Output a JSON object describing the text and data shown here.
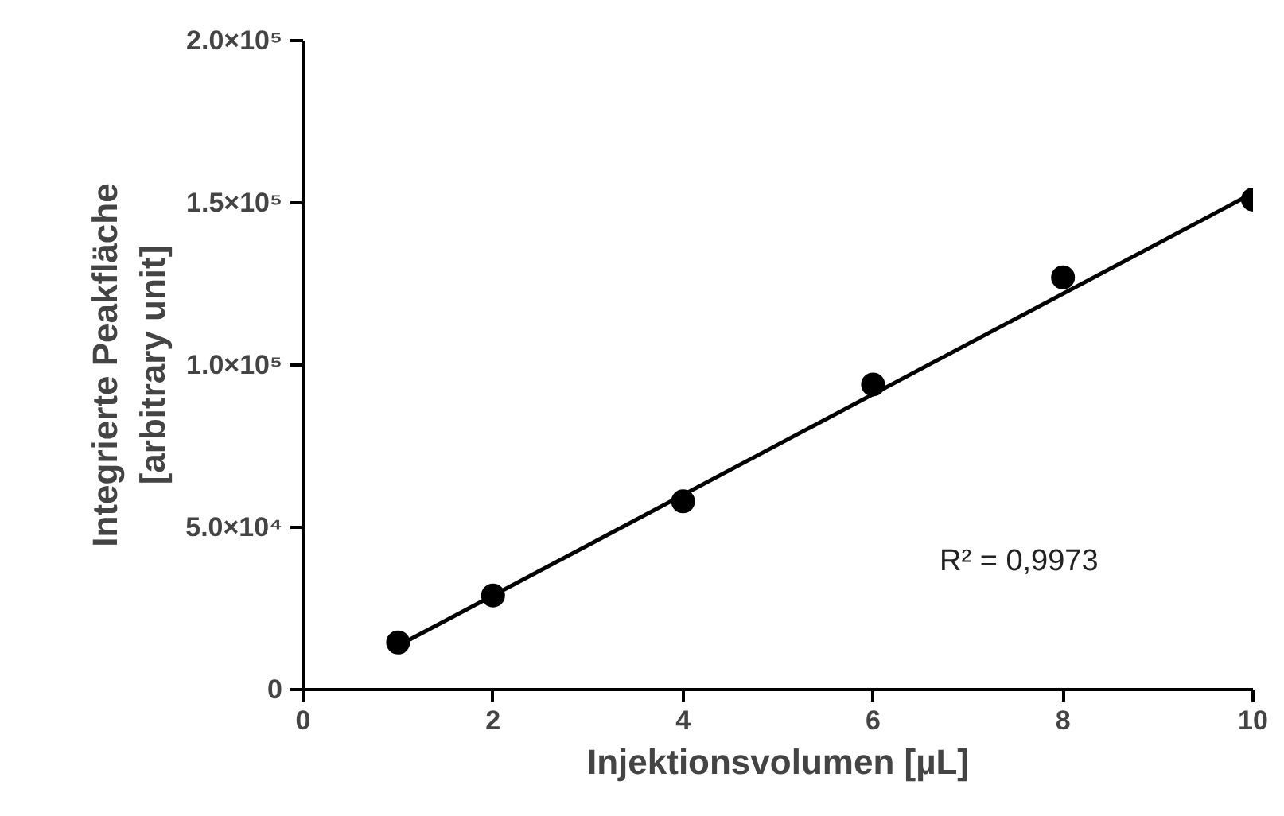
{
  "chart_data": {
    "type": "scatter",
    "xlabel": "Injektionsvolumen [µL]",
    "ylabel": "Integrierte Peakfläche\n[arbitrary unit]",
    "x": [
      1,
      2,
      4,
      6,
      8,
      10
    ],
    "series": [
      {
        "color": "#000000",
        "marker": "circle",
        "values": [
          14500,
          29000,
          58000,
          94000,
          127000,
          151000
        ]
      },
      {
        "type": "line",
        "color": "#000000",
        "line_style": "solid",
        "x": [
          1,
          10
        ],
        "values": [
          13500,
          153000
        ]
      }
    ],
    "xlim": [
      0,
      10
    ],
    "ylim": [
      0,
      200000
    ],
    "xticks": [
      0,
      2,
      4,
      6,
      8,
      10
    ],
    "yticks": [
      {
        "value": 0,
        "label": "0"
      },
      {
        "value": 50000,
        "label": "5.0×10⁴"
      },
      {
        "value": 100000,
        "label": "1.0×10⁵"
      },
      {
        "value": 150000,
        "label": "1.5×10⁵"
      },
      {
        "value": 200000,
        "label": "2.0×10⁵"
      }
    ],
    "annotations": [
      "R² = 0,9973"
    ],
    "grid": false
  }
}
